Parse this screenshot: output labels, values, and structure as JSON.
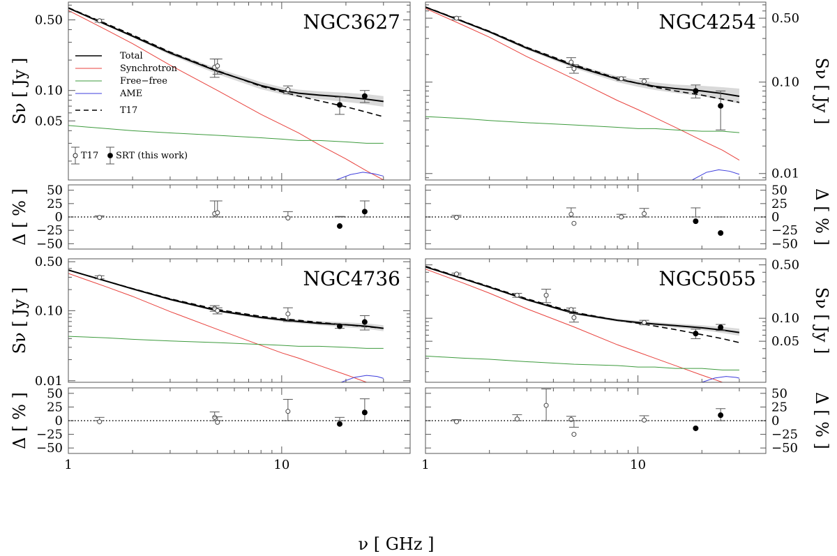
{
  "figure": {
    "xlabel": "ν [ GHz ]",
    "ylabel_flux": "Sν [ Jy ]",
    "ylabel_residual": "Δ [ % ]",
    "x_tick_labels": [
      "1",
      "10"
    ]
  },
  "legend": {
    "lines": [
      {
        "label": "Total",
        "color": "#000000",
        "style": "solid"
      },
      {
        "label": "Synchrotron",
        "color": "#e8413c",
        "style": "solid"
      },
      {
        "label": "Free−free",
        "color": "#3c9a3c",
        "style": "solid"
      },
      {
        "label": "AME",
        "color": "#3c3cdc",
        "style": "solid"
      },
      {
        "label": "T17",
        "color": "#000000",
        "style": "dashed"
      }
    ],
    "markers": [
      {
        "label": "T17",
        "marker": "open-circle"
      },
      {
        "label": "SRT (this work)",
        "marker": "filled-circle"
      }
    ]
  },
  "colors": {
    "total": "#000000",
    "synchrotron": "#e8413c",
    "free_free": "#3c9a3c",
    "ame": "#3c3cdc",
    "band": "#d9d9d9",
    "errorbar": "#555555"
  },
  "chart_data": [
    {
      "type": "line",
      "name": "NGC3627",
      "title": "NGC3627",
      "xlabel": "ν [ GHz ]",
      "ylabel": "Sν [ Jy ]",
      "xscale": "log",
      "yscale": "log",
      "xlim": [
        1,
        40
      ],
      "ylim": [
        0.013,
        0.75
      ],
      "y_tick_labels": [
        "0.50",
        "0.10",
        "0.05"
      ],
      "y_ticks": [
        0.5,
        0.1,
        0.05
      ],
      "legend_position": "left",
      "models": {
        "x": [
          1,
          1.5,
          2,
          3,
          5,
          8,
          10,
          12,
          15,
          20,
          25,
          30
        ],
        "total": [
          0.655,
          0.45,
          0.345,
          0.235,
          0.155,
          0.112,
          0.1,
          0.094,
          0.09,
          0.086,
          0.082,
          0.078
        ],
        "total_band_lower": [
          0.645,
          0.44,
          0.335,
          0.225,
          0.145,
          0.103,
          0.092,
          0.086,
          0.082,
          0.077,
          0.073,
          0.069
        ],
        "total_band_upper": [
          0.665,
          0.46,
          0.355,
          0.245,
          0.165,
          0.121,
          0.108,
          0.102,
          0.098,
          0.095,
          0.092,
          0.088
        ],
        "t17": [
          0.66,
          0.46,
          0.355,
          0.24,
          0.157,
          0.11,
          0.097,
          0.088,
          0.079,
          0.069,
          0.061,
          0.055
        ],
        "synchrotron": [
          0.62,
          0.4,
          0.291,
          0.178,
          0.1,
          0.058,
          0.046,
          0.038,
          0.029,
          0.021,
          0.016,
          0.013
        ],
        "free_free": [
          0.045,
          0.042,
          0.04,
          0.038,
          0.036,
          0.034,
          0.033,
          0.032,
          0.032,
          0.031,
          0.03,
          0.03
        ],
        "ame_x": [
          18,
          21,
          24,
          27,
          30
        ],
        "ame": [
          0.013,
          0.0147,
          0.0155,
          0.015,
          0.0142
        ]
      },
      "t17_points": [
        {
          "x": 1.4,
          "y": 0.49,
          "err": 0.015,
          "resid": -1,
          "resid_err": 3
        },
        {
          "x": 4.85,
          "y": 0.17,
          "err": 0.035,
          "resid": 6,
          "resid_err": 24
        },
        {
          "x": 5.0,
          "y": 0.175,
          "err": 0.03,
          "resid": 8,
          "resid_err": 22
        },
        {
          "x": 10.7,
          "y": 0.102,
          "err": 0.009,
          "resid": -2,
          "resid_err": 12
        }
      ],
      "srt_points": [
        {
          "x": 18.7,
          "y": 0.072,
          "err": 0.014,
          "resid": -17,
          "resid_err": 18
        },
        {
          "x": 24.5,
          "y": 0.088,
          "err": 0.012,
          "resid": 10,
          "resid_err": 20
        }
      ],
      "residual": {
        "ylim": [
          -60,
          60
        ],
        "y_tick_labels": [
          "50",
          "25",
          "0",
          "−25",
          "−50"
        ],
        "y_ticks": [
          50,
          25,
          0,
          -25,
          -50
        ]
      }
    },
    {
      "type": "line",
      "name": "NGC4254",
      "title": "NGC4254",
      "xlabel": "ν [ GHz ]",
      "ylabel": "Sν [ Jy ]",
      "xscale": "log",
      "yscale": "log",
      "xlim": [
        1,
        40
      ],
      "ylim": [
        0.0085,
        0.75
      ],
      "y_tick_labels": [
        "0.50",
        "0.10",
        "0.01"
      ],
      "y_ticks": [
        0.5,
        0.1,
        0.01
      ],
      "models": {
        "x": [
          1,
          1.5,
          2,
          3,
          5,
          8,
          10,
          12,
          15,
          20,
          25,
          30
        ],
        "total": [
          0.66,
          0.46,
          0.355,
          0.235,
          0.15,
          0.108,
          0.097,
          0.09,
          0.085,
          0.08,
          0.075,
          0.07
        ],
        "total_band_lower": [
          0.65,
          0.45,
          0.345,
          0.226,
          0.142,
          0.1,
          0.089,
          0.082,
          0.076,
          0.07,
          0.064,
          0.058
        ],
        "total_band_upper": [
          0.67,
          0.47,
          0.365,
          0.245,
          0.158,
          0.116,
          0.105,
          0.099,
          0.094,
          0.091,
          0.088,
          0.085
        ],
        "t17": [
          0.665,
          0.465,
          0.36,
          0.24,
          0.155,
          0.11,
          0.097,
          0.088,
          0.08,
          0.072,
          0.065,
          0.06
        ],
        "synchrotron": [
          0.64,
          0.42,
          0.31,
          0.19,
          0.108,
          0.063,
          0.05,
          0.041,
          0.032,
          0.023,
          0.018,
          0.014
        ],
        "free_free": [
          0.042,
          0.04,
          0.038,
          0.036,
          0.034,
          0.032,
          0.031,
          0.031,
          0.03,
          0.029,
          0.029,
          0.028
        ],
        "ame_x": [
          18,
          21,
          24,
          27,
          30
        ],
        "ame": [
          0.0085,
          0.0103,
          0.011,
          0.0106,
          0.0098
        ]
      },
      "t17_points": [
        {
          "x": 1.4,
          "y": 0.5,
          "err": 0.02,
          "resid": -1,
          "resid_err": 4
        },
        {
          "x": 4.85,
          "y": 0.165,
          "err": 0.02,
          "resid": 5,
          "resid_err": 12
        },
        {
          "x": 5.0,
          "y": 0.14,
          "err": 0.015,
          "resid": -12,
          "resid_err": 12
        },
        {
          "x": 8.35,
          "y": 0.109,
          "err": 0.005,
          "resid": 0,
          "resid_err": 5
        },
        {
          "x": 10.7,
          "y": 0.102,
          "err": 0.007,
          "resid": 6,
          "resid_err": 10
        }
      ],
      "srt_points": [
        {
          "x": 18.7,
          "y": 0.08,
          "err": 0.013,
          "resid": -8,
          "resid_err": 25
        },
        {
          "x": 24.5,
          "y": 0.055,
          "err": 0.025,
          "resid": -30,
          "resid_err": 30
        }
      ],
      "residual": {
        "ylim": [
          -60,
          60
        ],
        "y_tick_labels": [
          "50",
          "25",
          "0",
          "−25",
          "−50"
        ],
        "y_ticks": [
          50,
          25,
          0,
          -25,
          -50
        ]
      }
    },
    {
      "type": "line",
      "name": "NGC4736",
      "title": "NGC4736",
      "xlabel": "ν [ GHz ]",
      "ylabel": "Sν [ Jy ]",
      "xscale": "log",
      "yscale": "log",
      "xlim": [
        1,
        40
      ],
      "ylim": [
        0.0095,
        0.55
      ],
      "y_tick_labels": [
        "0.50",
        "0.10",
        "0.01"
      ],
      "y_ticks": [
        0.5,
        0.1,
        0.01
      ],
      "models": {
        "x": [
          1,
          1.5,
          2,
          3,
          5,
          8,
          10,
          12,
          15,
          20,
          25,
          30
        ],
        "total": [
          0.38,
          0.265,
          0.205,
          0.145,
          0.1,
          0.08,
          0.074,
          0.07,
          0.066,
          0.063,
          0.06,
          0.056
        ],
        "total_band_lower": [
          0.372,
          0.258,
          0.199,
          0.14,
          0.096,
          0.076,
          0.07,
          0.066,
          0.062,
          0.058,
          0.055,
          0.051
        ],
        "total_band_upper": [
          0.388,
          0.272,
          0.211,
          0.15,
          0.104,
          0.084,
          0.078,
          0.074,
          0.071,
          0.068,
          0.066,
          0.062
        ],
        "t17": [
          0.38,
          0.265,
          0.207,
          0.148,
          0.104,
          0.083,
          0.077,
          0.073,
          0.068,
          0.063,
          0.059,
          0.056
        ],
        "synchrotron": [
          0.34,
          0.22,
          0.16,
          0.097,
          0.054,
          0.032,
          0.025,
          0.021,
          0.0165,
          0.0122,
          0.0095,
          0.0078
        ],
        "free_free": [
          0.043,
          0.041,
          0.039,
          0.037,
          0.035,
          0.033,
          0.032,
          0.031,
          0.031,
          0.03,
          0.029,
          0.029
        ],
        "ame_x": [
          19,
          22,
          25,
          28,
          30
        ],
        "ame": [
          0.0095,
          0.0112,
          0.0119,
          0.0115,
          0.0108
        ]
      },
      "t17_points": [
        {
          "x": 1.4,
          "y": 0.3,
          "err": 0.015,
          "resid": -2,
          "resid_err": 8
        },
        {
          "x": 4.85,
          "y": 0.108,
          "err": 0.01,
          "resid": 6,
          "resid_err": 10
        },
        {
          "x": 5.0,
          "y": 0.1,
          "err": 0.01,
          "resid": -3,
          "resid_err": 10
        },
        {
          "x": 10.7,
          "y": 0.09,
          "err": 0.02,
          "resid": 17,
          "resid_err": 22
        }
      ],
      "srt_points": [
        {
          "x": 18.7,
          "y": 0.06,
          "err": 0.004,
          "resid": -6,
          "resid_err": 12
        },
        {
          "x": 24.5,
          "y": 0.069,
          "err": 0.016,
          "resid": 15,
          "resid_err": 25
        }
      ],
      "residual": {
        "ylim": [
          -60,
          60
        ],
        "y_tick_labels": [
          "50",
          "25",
          "0",
          "−25",
          "−50"
        ],
        "y_ticks": [
          50,
          25,
          0,
          -25,
          -50
        ]
      }
    },
    {
      "type": "line",
      "name": "NGC5055",
      "title": "NGC5055",
      "xlabel": "ν [ GHz ]",
      "ylabel": "Sν [ Jy ]",
      "xscale": "log",
      "yscale": "log",
      "xlim": [
        1,
        40
      ],
      "ylim": [
        0.0145,
        0.6
      ],
      "y_tick_labels": [
        "0.50",
        "0.10",
        "0.05"
      ],
      "y_ticks": [
        0.5,
        0.1,
        0.05
      ],
      "models": {
        "x": [
          1,
          1.5,
          2,
          3,
          5,
          8,
          10,
          12,
          15,
          20,
          25,
          30
        ],
        "total": [
          0.47,
          0.33,
          0.255,
          0.175,
          0.116,
          0.094,
          0.088,
          0.084,
          0.08,
          0.075,
          0.07,
          0.065
        ],
        "total_band_lower": [
          0.462,
          0.323,
          0.249,
          0.17,
          0.112,
          0.09,
          0.084,
          0.08,
          0.075,
          0.07,
          0.064,
          0.059
        ],
        "total_band_upper": [
          0.478,
          0.337,
          0.261,
          0.18,
          0.12,
          0.098,
          0.093,
          0.089,
          0.085,
          0.081,
          0.077,
          0.073
        ],
        "t17": [
          0.48,
          0.335,
          0.26,
          0.18,
          0.12,
          0.094,
          0.086,
          0.079,
          0.071,
          0.061,
          0.054,
          0.048
        ],
        "synchrotron": [
          0.44,
          0.29,
          0.213,
          0.133,
          0.077,
          0.045,
          0.036,
          0.03,
          0.024,
          0.018,
          0.0145,
          0.012
        ],
        "free_free": [
          0.032,
          0.03,
          0.029,
          0.027,
          0.025,
          0.024,
          0.023,
          0.023,
          0.022,
          0.022,
          0.021,
          0.021
        ],
        "ame_x": [
          20,
          23,
          26,
          29,
          30
        ],
        "ame": [
          0.0145,
          0.0165,
          0.0173,
          0.0168,
          0.0164
        ]
      },
      "t17_points": [
        {
          "x": 1.4,
          "y": 0.38,
          "err": 0.01,
          "resid": -2,
          "resid_err": 4
        },
        {
          "x": 2.7,
          "y": 0.2,
          "err": 0.012,
          "resid": 3,
          "resid_err": 8
        },
        {
          "x": 3.7,
          "y": 0.2,
          "err": 0.04,
          "resid": 28,
          "resid_err": 30
        },
        {
          "x": 4.85,
          "y": 0.13,
          "err": 0.006,
          "resid": 2,
          "resid_err": 6
        },
        {
          "x": 5.0,
          "y": 0.102,
          "err": 0.013,
          "resid": -25,
          "resid_err": 13
        },
        {
          "x": 10.7,
          "y": 0.088,
          "err": 0.006,
          "resid": 1,
          "resid_err": 8
        }
      ],
      "srt_points": [
        {
          "x": 18.7,
          "y": 0.063,
          "err": 0.009,
          "resid": -14,
          "resid_err": 14
        },
        {
          "x": 24.5,
          "y": 0.076,
          "err": 0.007,
          "resid": 10,
          "resid_err": 12
        }
      ],
      "residual": {
        "ylim": [
          -60,
          60
        ],
        "y_tick_labels": [
          "50",
          "25",
          "0",
          "−25",
          "−50"
        ],
        "y_ticks": [
          50,
          25,
          0,
          -25,
          -50
        ]
      }
    }
  ]
}
